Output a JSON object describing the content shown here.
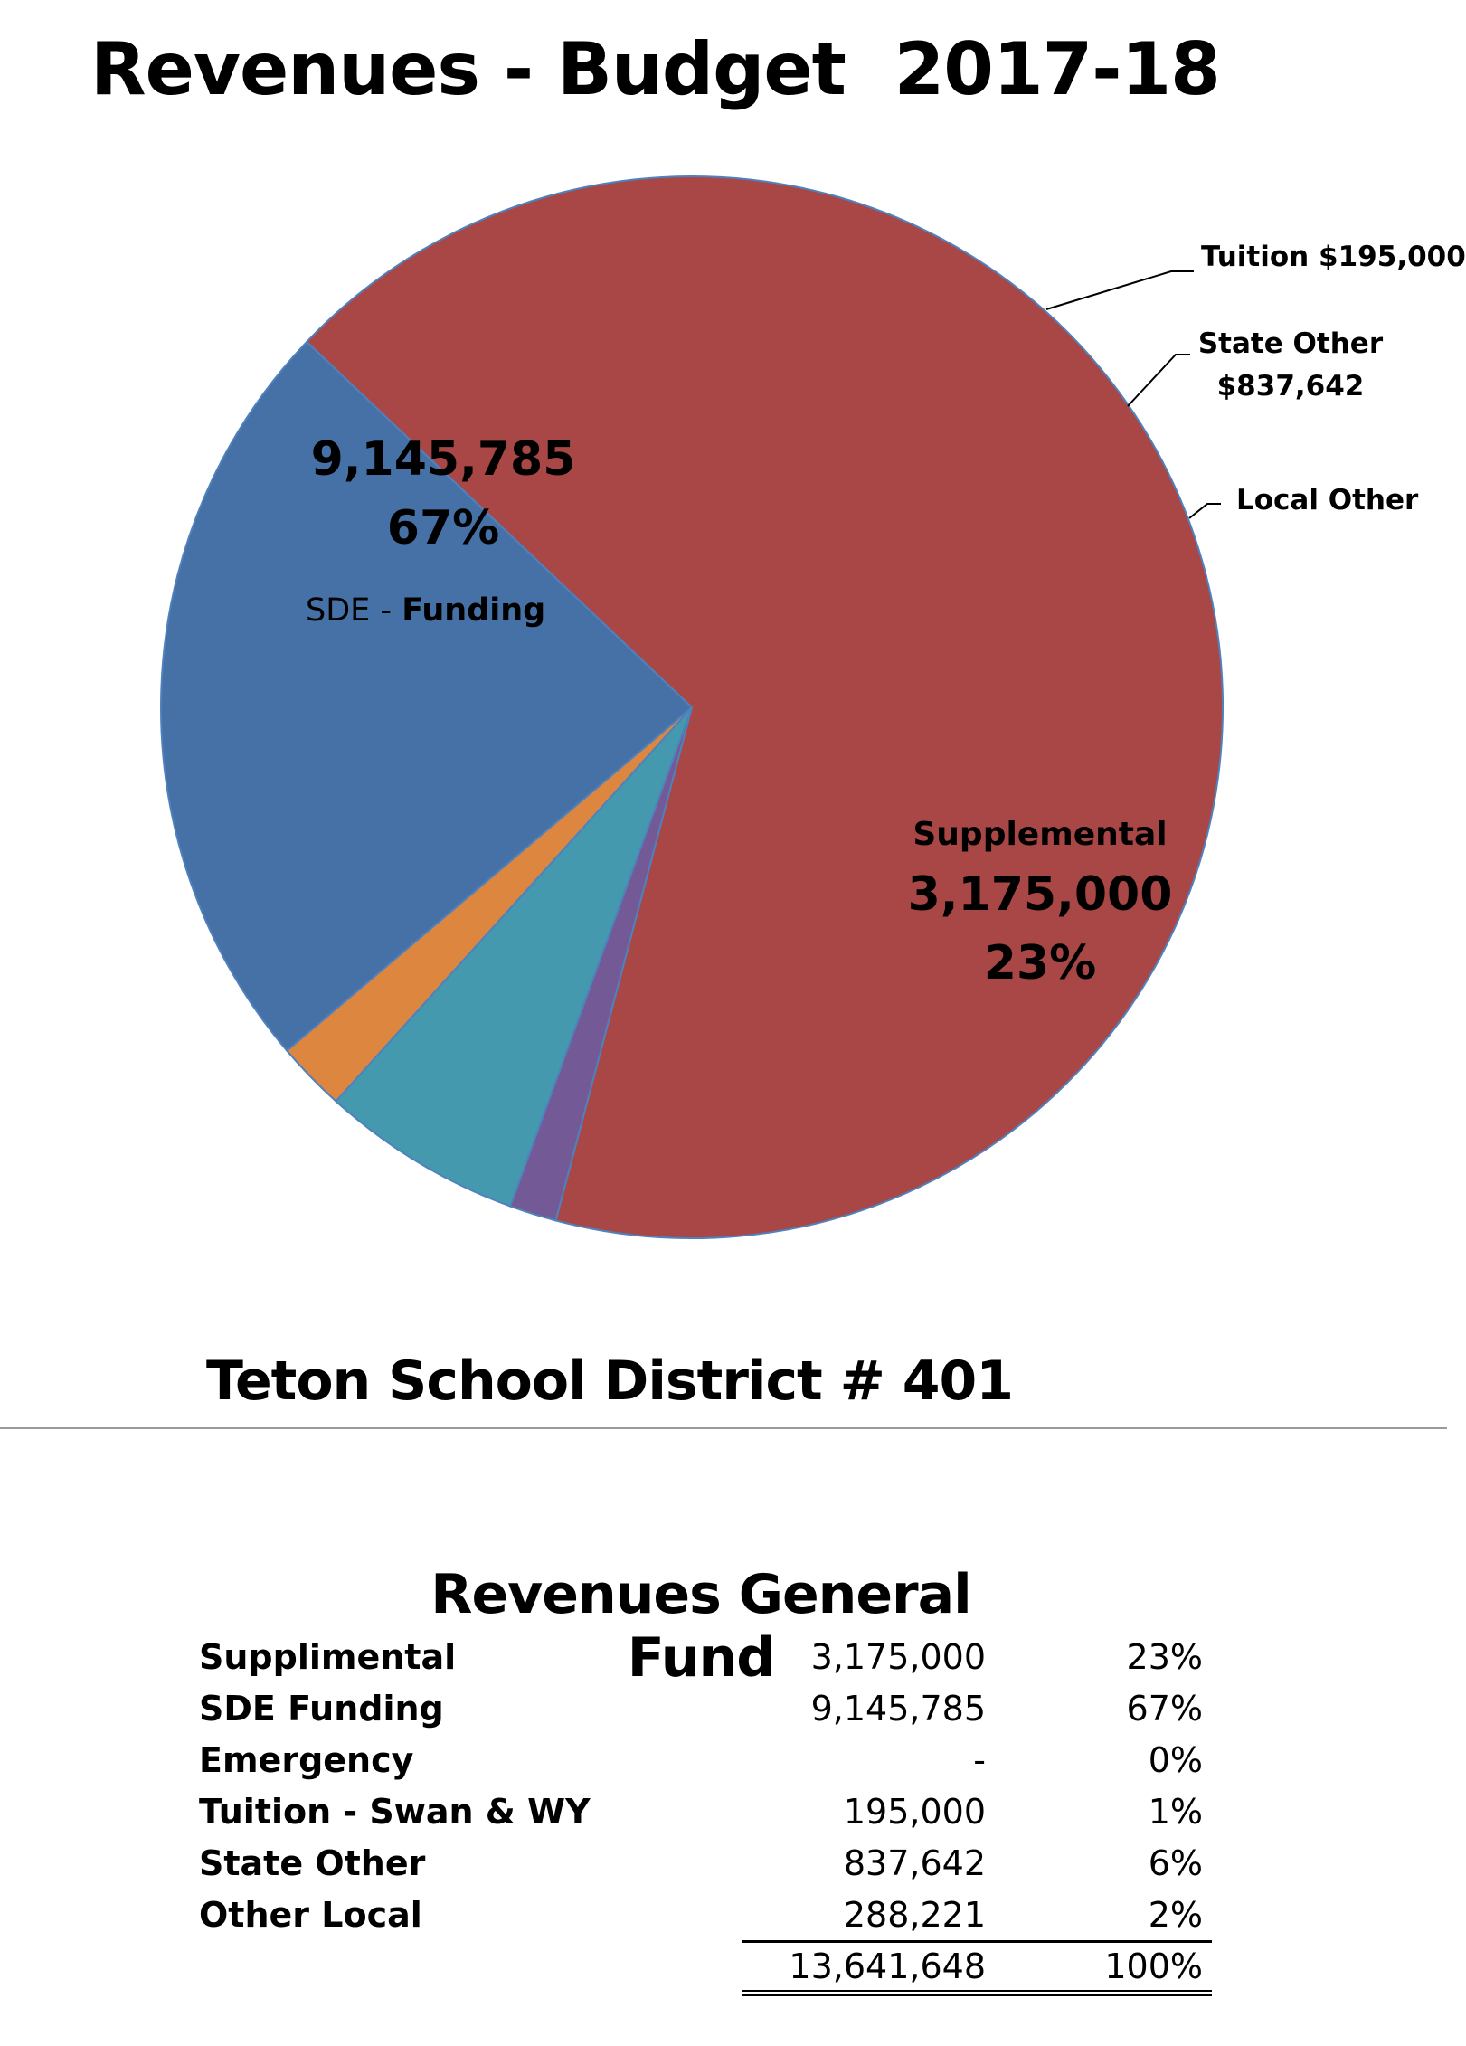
{
  "title": "Revenues - Budget  2017-18",
  "chart_data": {
    "type": "pie",
    "title": "Revenues - Budget  2017-18",
    "slices": [
      {
        "name": "SDE Funding",
        "value": 9145785,
        "color": "#a84745"
      },
      {
        "name": "Tuition",
        "value": 195000,
        "color": "#735a96"
      },
      {
        "name": "State Other",
        "value": 837642,
        "color": "#4499ae"
      },
      {
        "name": "Local Other",
        "value": 288221,
        "color": "#dc8640"
      },
      {
        "name": "Supplemental",
        "value": 3175000,
        "color": "#4671a6"
      }
    ],
    "labels": {
      "sde_value": "9,145,785",
      "sde_pct": "67%",
      "sde_prefix": "SDE -",
      "sde_name": "Funding",
      "supp_name": "Supplemental",
      "supp_value": "3,175,000",
      "supp_pct": "23%",
      "tuition": "Tuition $195,000",
      "state_other_line1": "State Other",
      "state_other_line2": "$837,642",
      "local_other": "Local Other"
    }
  },
  "district": "Teton School District # 401",
  "table": {
    "title": "Revenues General Fund",
    "rows": [
      {
        "name": "Supplimental",
        "amount": "3,175,000",
        "pct": "23%"
      },
      {
        "name": "SDE Funding",
        "amount": "9,145,785",
        "pct": "67%"
      },
      {
        "name": "Emergency",
        "amount": "-",
        "pct": "0%"
      },
      {
        "name": "Tuition - Swan & WY",
        "amount": "195,000",
        "pct": "1%"
      },
      {
        "name": "State Other",
        "amount": "837,642",
        "pct": "6%"
      },
      {
        "name": "Other Local",
        "amount": "288,221",
        "pct": "2%"
      }
    ],
    "total": {
      "amount": "13,641,648",
      "pct": "100%"
    }
  }
}
